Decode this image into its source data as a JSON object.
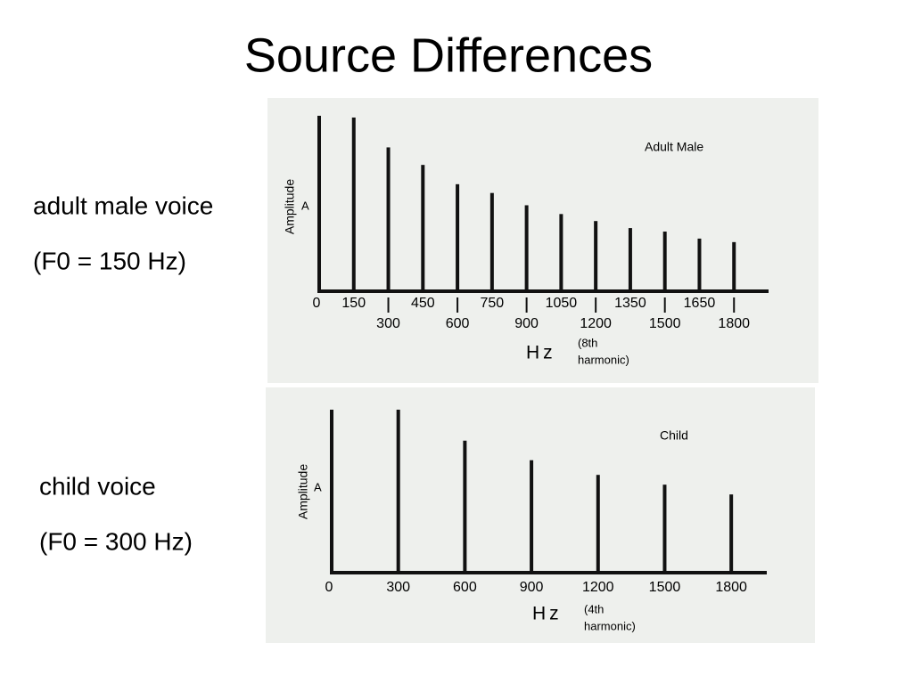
{
  "slide": {
    "title": "Source Differences",
    "labels": [
      "adult male voice",
      "(F0 = 150 Hz)",
      "child voice",
      "(F0 = 300 Hz)"
    ]
  },
  "chart_data": [
    {
      "type": "bar",
      "title": "Adult Male",
      "y_label": "Amplitude",
      "y_marker": "A",
      "x_label": "Hz",
      "annotation_lines": [
        "(8th",
        "harmonic)"
      ],
      "x": [
        150,
        300,
        450,
        600,
        750,
        900,
        1050,
        1200,
        1350,
        1500,
        1650,
        1800
      ],
      "values": [
        99,
        82,
        72,
        61,
        56,
        49,
        44,
        40,
        36,
        34,
        30,
        28
      ],
      "color": "#111111",
      "xlim": [
        0,
        1950
      ],
      "xticks": [
        0,
        150,
        300,
        450,
        600,
        750,
        900,
        1050,
        1200,
        1350,
        1500,
        1650,
        1800
      ],
      "ylim": [
        0,
        100
      ]
    },
    {
      "type": "bar",
      "title": "Child",
      "y_label": "Amplitude",
      "y_marker": "A",
      "x_label": "Hz",
      "annotation_lines": [
        "(4th",
        "harmonic)"
      ],
      "x": [
        300,
        600,
        900,
        1200,
        1500,
        1800
      ],
      "values": [
        100,
        81,
        69,
        60,
        54,
        48
      ],
      "color": "#111111",
      "xlim": [
        0,
        1960
      ],
      "xticks": [
        0,
        300,
        600,
        900,
        1200,
        1500,
        1800
      ],
      "ylim": [
        0,
        100
      ]
    }
  ]
}
